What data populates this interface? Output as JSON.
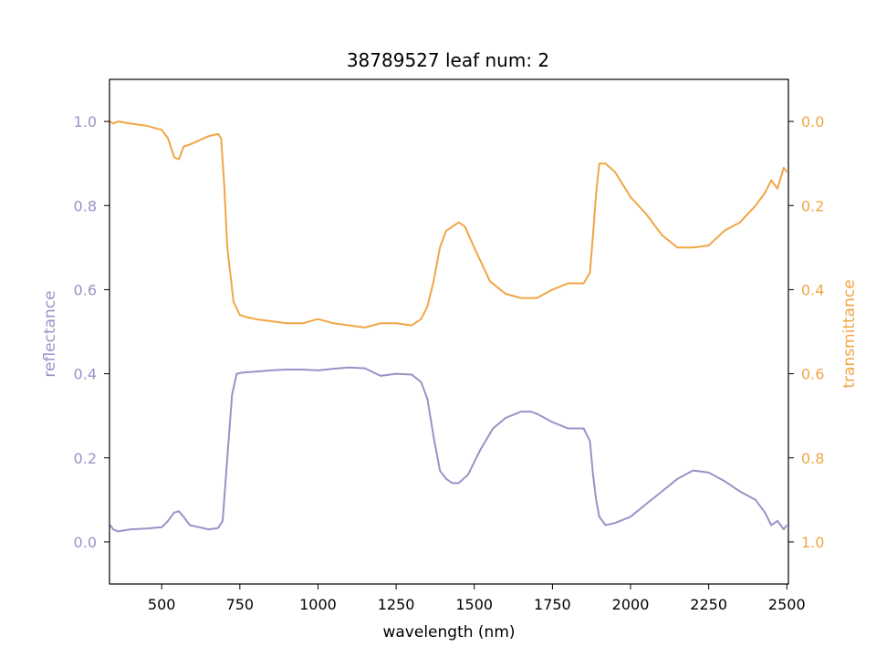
{
  "chart_data": {
    "type": "line",
    "title": "38789527 leaf num: 2",
    "xlabel": "wavelength (nm)",
    "ylabel_left": "reflectance",
    "ylabel_right": "transmittance",
    "xlim": [
      333,
      2505
    ],
    "ylim_left": [
      -0.1,
      1.1
    ],
    "ylim_right": [
      1.1,
      -0.1
    ],
    "right_axis_inverted": true,
    "x_ticks": [
      500,
      750,
      1000,
      1250,
      1500,
      1750,
      2000,
      2250,
      2500
    ],
    "y_ticks_left": [
      0.0,
      0.2,
      0.4,
      0.6,
      0.8,
      1.0
    ],
    "y_ticks_right": [
      0.0,
      0.2,
      0.4,
      0.6,
      0.8,
      1.0
    ],
    "grid": false,
    "legend": "none",
    "colors": {
      "reflectance": "#9b91c8",
      "transmittance": "#f0a646",
      "axis": "#000000"
    },
    "series": [
      {
        "name": "reflectance",
        "axis": "left",
        "x": [
          335,
          345,
          360,
          400,
          450,
          500,
          520,
          540,
          555,
          570,
          590,
          620,
          650,
          680,
          695,
          710,
          725,
          740,
          760,
          800,
          850,
          900,
          950,
          1000,
          1050,
          1100,
          1150,
          1200,
          1250,
          1300,
          1330,
          1350,
          1370,
          1390,
          1410,
          1430,
          1450,
          1480,
          1520,
          1560,
          1600,
          1650,
          1680,
          1700,
          1750,
          1800,
          1850,
          1870,
          1880,
          1890,
          1900,
          1920,
          1950,
          2000,
          2050,
          2100,
          2150,
          2200,
          2250,
          2300,
          2350,
          2400,
          2430,
          2450,
          2470,
          2490,
          2500
        ],
        "values": [
          0.04,
          0.03,
          0.025,
          0.03,
          0.032,
          0.035,
          0.05,
          0.07,
          0.073,
          0.06,
          0.04,
          0.035,
          0.03,
          0.033,
          0.05,
          0.2,
          0.35,
          0.4,
          0.403,
          0.405,
          0.408,
          0.41,
          0.41,
          0.408,
          0.412,
          0.415,
          0.413,
          0.395,
          0.4,
          0.398,
          0.38,
          0.34,
          0.25,
          0.17,
          0.15,
          0.14,
          0.14,
          0.16,
          0.22,
          0.27,
          0.295,
          0.31,
          0.31,
          0.305,
          0.285,
          0.27,
          0.27,
          0.24,
          0.16,
          0.1,
          0.06,
          0.04,
          0.045,
          0.06,
          0.09,
          0.12,
          0.15,
          0.17,
          0.165,
          0.145,
          0.12,
          0.1,
          0.07,
          0.04,
          0.05,
          0.03,
          0.04
        ]
      },
      {
        "name": "transmittance",
        "axis": "right",
        "x": [
          335,
          345,
          360,
          400,
          450,
          500,
          520,
          540,
          555,
          570,
          590,
          620,
          650,
          680,
          690,
          700,
          710,
          730,
          750,
          770,
          800,
          850,
          900,
          950,
          1000,
          1050,
          1100,
          1150,
          1200,
          1250,
          1300,
          1330,
          1350,
          1370,
          1390,
          1410,
          1430,
          1450,
          1470,
          1500,
          1550,
          1600,
          1650,
          1700,
          1750,
          1800,
          1850,
          1870,
          1880,
          1890,
          1900,
          1920,
          1950,
          2000,
          2050,
          2100,
          2150,
          2200,
          2250,
          2300,
          2350,
          2400,
          2430,
          2450,
          2470,
          2490,
          2500
        ],
        "values": [
          0.0,
          0.005,
          0.0,
          0.005,
          0.01,
          0.02,
          0.04,
          0.085,
          0.09,
          0.06,
          0.055,
          0.045,
          0.035,
          0.03,
          0.04,
          0.15,
          0.3,
          0.43,
          0.46,
          0.465,
          0.47,
          0.475,
          0.48,
          0.48,
          0.47,
          0.48,
          0.485,
          0.49,
          0.48,
          0.48,
          0.485,
          0.47,
          0.44,
          0.38,
          0.3,
          0.26,
          0.25,
          0.24,
          0.25,
          0.3,
          0.38,
          0.41,
          0.42,
          0.42,
          0.4,
          0.385,
          0.385,
          0.36,
          0.27,
          0.17,
          0.1,
          0.1,
          0.12,
          0.18,
          0.22,
          0.27,
          0.3,
          0.3,
          0.295,
          0.26,
          0.24,
          0.2,
          0.17,
          0.14,
          0.16,
          0.11,
          0.12
        ]
      }
    ]
  }
}
